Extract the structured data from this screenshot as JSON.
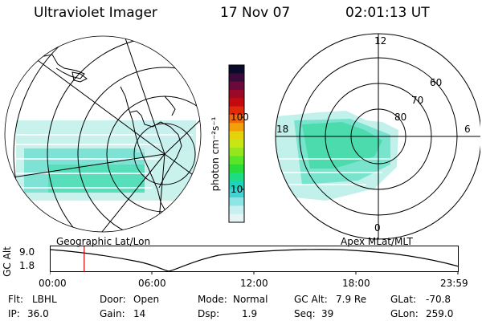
{
  "header": {
    "title": "Ultraviolet Imager",
    "date": "17 Nov 07",
    "time": "02:01:13 UT"
  },
  "geo_panel": {
    "label": "Geographic Lat/Lon"
  },
  "mag_panel": {
    "label": "Apex MLat/MLT",
    "lat_labels": [
      "80",
      "70",
      "60"
    ],
    "mlt_labels": [
      "12",
      "18",
      "6",
      "0"
    ]
  },
  "colorbar": {
    "unit": "photon cm⁻²s⁻¹",
    "ticks": [
      "100",
      "10"
    ],
    "colors": [
      "#0a0a2a",
      "#3a0a3a",
      "#6a0a3a",
      "#9a0a28",
      "#c40a10",
      "#e02a0a",
      "#f06a0a",
      "#f2a00a",
      "#e6d20a",
      "#c8e614",
      "#96e61e",
      "#5ae628",
      "#28dc3c",
      "#1edc82",
      "#1ed2be",
      "#46d2d2",
      "#8ce6e6",
      "#c8f0f0",
      "#e6f4f4"
    ]
  },
  "altitude_plot": {
    "ylabel": "GC Alt",
    "yticks": [
      "9.0",
      "1.8"
    ],
    "xticks": [
      "00:00",
      "06:00",
      "12:00",
      "18:00",
      "23:59"
    ],
    "current_time_hours": 2.02,
    "ylim": [
      1.8,
      9.0
    ]
  },
  "status": {
    "flt_label": "Flt:",
    "flt_value": "LBHL",
    "ip_label": "IP:",
    "ip_value": "36.0",
    "door_label": "Door:",
    "door_value": "Open",
    "gain_label": "Gain:",
    "gain_value": "14",
    "mode_label": "Mode:",
    "mode_value": "Normal",
    "dsp_label": "Dsp:",
    "dsp_value": "1.9",
    "gcalt_label": "GC Alt:",
    "gcalt_value": "7.9 Re",
    "seq_label": "Seq:",
    "seq_value": "39",
    "glat_label": "GLat:",
    "glat_value": "-70.8",
    "glon_label": "GLon:",
    "glon_value": "259.0"
  }
}
